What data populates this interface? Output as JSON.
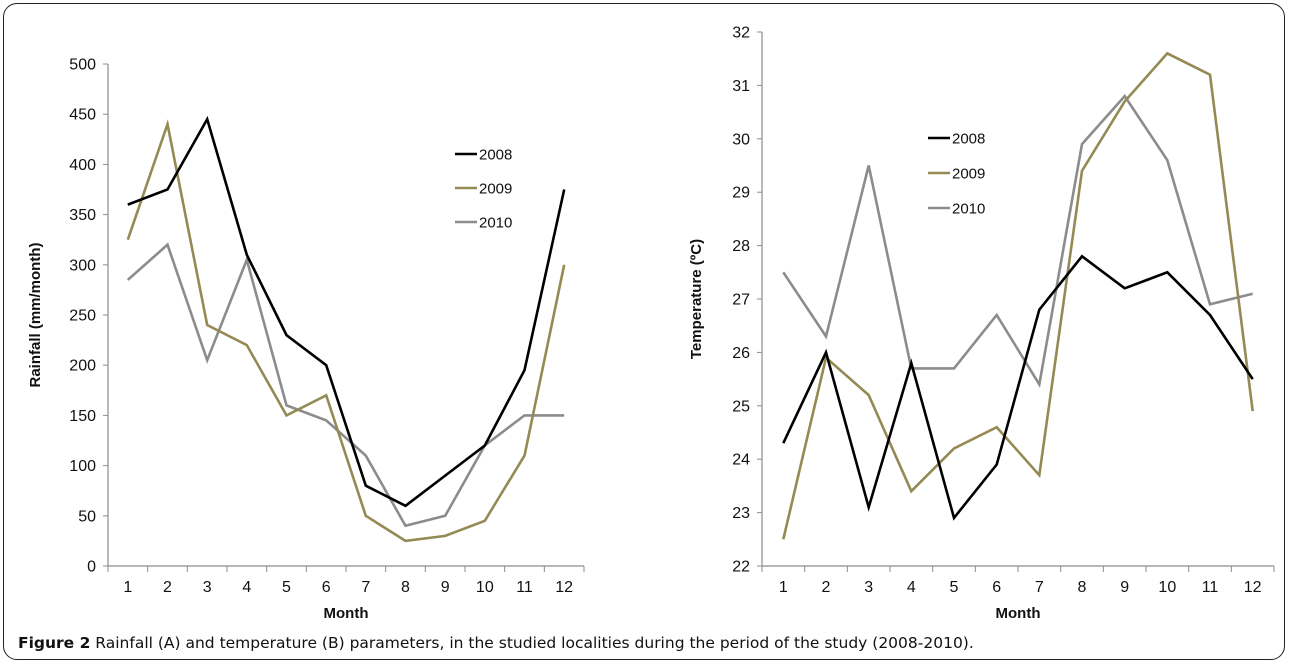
{
  "caption": {
    "label": "Figure 2",
    "text": " Rainfall (A) and temperature (B) parameters, in the studied localities during the period of the study (2008-2010)."
  },
  "colors": {
    "2008": "#000000",
    "2009": "#948A54",
    "2010": "#8C8C8C",
    "axis": "#8C8C8C"
  },
  "chart_data": [
    {
      "type": "line",
      "title": "",
      "xlabel": "Month",
      "ylabel": "Rainfall (mm/month)",
      "x": [
        1,
        2,
        3,
        4,
        5,
        6,
        7,
        8,
        9,
        10,
        11,
        12
      ],
      "ylim": [
        0,
        500
      ],
      "yticks": [
        0,
        50,
        100,
        150,
        200,
        250,
        300,
        350,
        400,
        450,
        500
      ],
      "grid": false,
      "legend_position": "upper-right",
      "series": [
        {
          "name": "2008",
          "values": [
            360,
            375,
            445,
            310,
            230,
            200,
            80,
            60,
            90,
            120,
            195,
            375
          ]
        },
        {
          "name": "2009",
          "values": [
            325,
            440,
            240,
            220,
            150,
            170,
            50,
            25,
            30,
            45,
            110,
            300
          ]
        },
        {
          "name": "2010",
          "values": [
            285,
            320,
            205,
            305,
            160,
            145,
            110,
            40,
            50,
            120,
            150,
            150
          ]
        }
      ]
    },
    {
      "type": "line",
      "title": "",
      "xlabel": "Month",
      "ylabel": "Temperature (ºC)",
      "x": [
        1,
        2,
        3,
        4,
        5,
        6,
        7,
        8,
        9,
        10,
        11,
        12
      ],
      "ylim": [
        22,
        32
      ],
      "yticks": [
        22,
        23,
        24,
        25,
        26,
        27,
        28,
        29,
        30,
        31,
        32
      ],
      "grid": false,
      "legend_position": "upper-left",
      "series": [
        {
          "name": "2008",
          "values": [
            24.3,
            26.0,
            23.1,
            25.8,
            22.9,
            23.9,
            26.8,
            27.8,
            27.2,
            27.5,
            26.7,
            25.5
          ]
        },
        {
          "name": "2009",
          "values": [
            22.5,
            25.9,
            25.2,
            23.4,
            24.2,
            24.6,
            23.7,
            29.4,
            30.7,
            31.6,
            31.2,
            24.9
          ]
        },
        {
          "name": "2010",
          "values": [
            27.5,
            26.3,
            29.5,
            25.7,
            25.7,
            26.7,
            25.4,
            29.9,
            30.8,
            29.6,
            26.9,
            27.1
          ]
        }
      ]
    }
  ]
}
